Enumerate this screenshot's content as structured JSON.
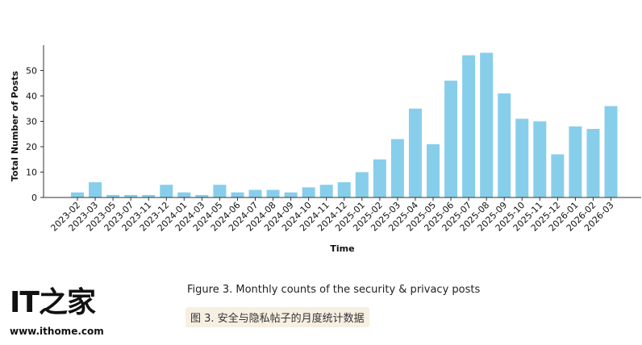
{
  "chart_data": {
    "type": "bar",
    "xlabel": "Time",
    "ylabel": "Total Number of Posts",
    "ylim": [
      0,
      60
    ],
    "yticks": [
      0,
      10,
      20,
      30,
      40,
      50
    ],
    "bar_color": "#87ceeb",
    "grid": false,
    "categories": [
      "2023-02",
      "2023-03",
      "2023-05",
      "2023-07",
      "2023-11",
      "2023-12",
      "2024-01",
      "2024-03",
      "2024-05",
      "2024-06",
      "2024-07",
      "2024-08",
      "2024-09",
      "2024-10",
      "2024-11",
      "2024-12",
      "2025-01",
      "2025-02",
      "2025-03",
      "2025-04",
      "2025-05",
      "2025-06",
      "2025-07",
      "2025-08",
      "2025-09",
      "2025-10",
      "2025-11",
      "2025-12",
      "2026-01",
      "2026-02",
      "2026-03"
    ],
    "values": [
      2,
      6,
      1,
      1,
      1,
      5,
      2,
      1,
      5,
      2,
      3,
      3,
      2,
      4,
      5,
      6,
      10,
      15,
      23,
      35,
      21,
      46,
      56,
      57,
      41,
      31,
      30,
      17,
      28,
      27,
      36
    ]
  },
  "caption": {
    "english": "Figure 3. Monthly counts of the security & privacy posts",
    "chinese": "图 3. 安全与隐私帖子的月度统计数据"
  },
  "watermark": {
    "logo_text": "IT之家",
    "url": "www.ithome.com"
  }
}
